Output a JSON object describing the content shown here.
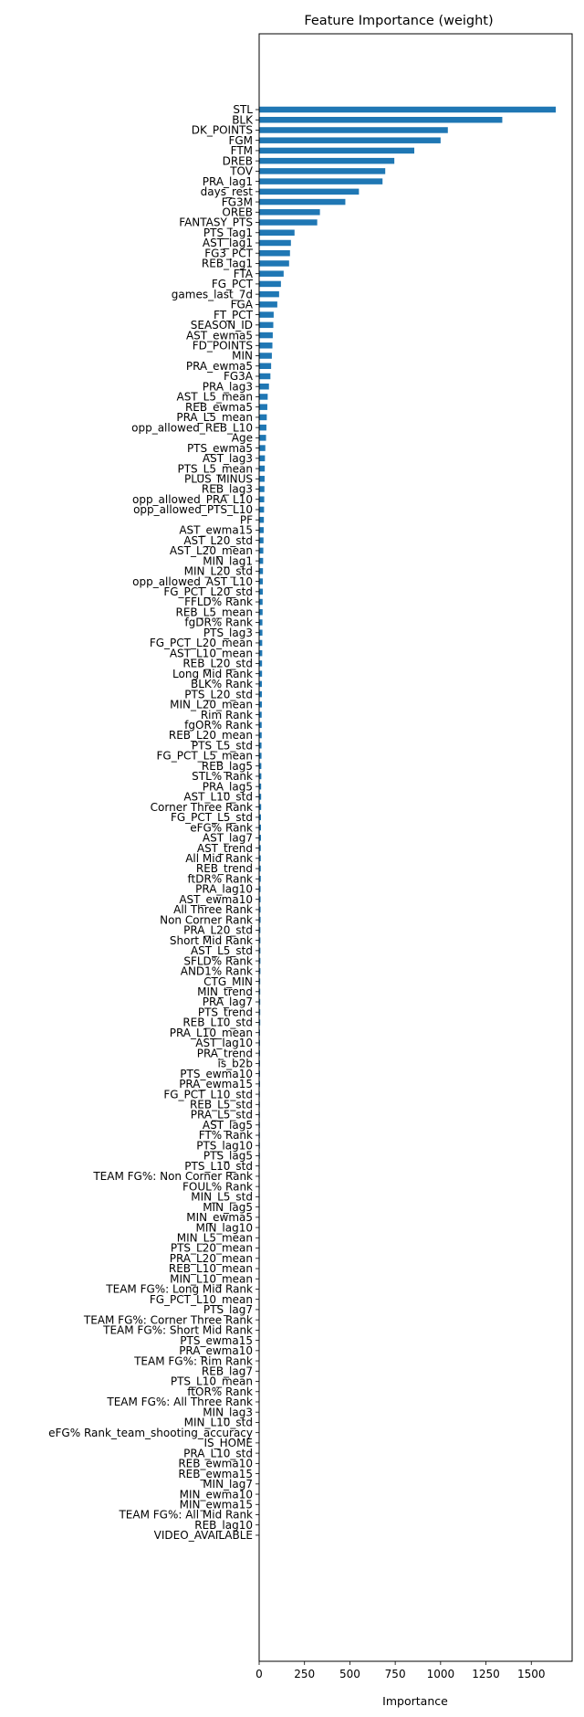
{
  "chart_data": {
    "type": "bar",
    "orientation": "horizontal",
    "title": "Feature Importance (weight)",
    "xlabel": "Importance",
    "ylabel": "",
    "xlim": [
      0,
      1725
    ],
    "xticks": [
      0,
      250,
      500,
      750,
      1000,
      1250,
      1500
    ],
    "grid": false,
    "bar_color": "#1f77b4",
    "categories": [
      "STL",
      "BLK",
      "DK_POINTS",
      "FGM",
      "FTM",
      "DREB",
      "TOV",
      "PRA_lag1",
      "days_rest",
      "FG3M",
      "OREB",
      "FANTASY_PTS",
      "PTS_lag1",
      "AST_lag1",
      "FG3_PCT",
      "REB_lag1",
      "FTA",
      "FG_PCT",
      "games_last_7d",
      "FGA",
      "FT_PCT",
      "SEASON_ID",
      "AST_ewma5",
      "FD_POINTS",
      "MIN",
      "PRA_ewma5",
      "FG3A",
      "PRA_lag3",
      "AST_L5_mean",
      "REB_ewma5",
      "PRA_L5_mean",
      "opp_allowed_REB_L10",
      "Age",
      "PTS_ewma5",
      "AST_lag3",
      "PTS_L5_mean",
      "PLUS_MINUS",
      "REB_lag3",
      "opp_allowed_PRA_L10",
      "opp_allowed_PTS_L10",
      "PF",
      "AST_ewma15",
      "AST_L20_std",
      "AST_L20_mean",
      "MIN_lag1",
      "MIN_L20_std",
      "opp_allowed_AST_L10",
      "FG_PCT_L20_std",
      "FFLD% Rank",
      "REB_L5_mean",
      "fgDR% Rank",
      "PTS_lag3",
      "FG_PCT_L20_mean",
      "AST_L10_mean",
      "REB_L20_std",
      "Long Mid Rank",
      "BLK% Rank",
      "PTS_L20_std",
      "MIN_L20_mean",
      "Rim Rank",
      "fgOR% Rank",
      "REB_L20_mean",
      "PTS_L5_std",
      "FG_PCT_L5_mean",
      "REB_lag5",
      "STL% Rank",
      "PRA_lag5",
      "AST_L10_std",
      "Corner Three Rank",
      "FG_PCT_L5_std",
      "eFG% Rank",
      "AST_lag7",
      "AST_trend",
      "All Mid Rank",
      "REB_trend",
      "ftDR% Rank",
      "PRA_lag10",
      "AST_ewma10",
      "All Three Rank",
      "Non Corner Rank",
      "PRA_L20_std",
      "Short Mid Rank",
      "AST_L5_std",
      "SFLD% Rank",
      "AND1% Rank",
      "CTG_MIN",
      "MIN_trend",
      "PRA_lag7",
      "PTS_trend",
      "REB_L10_std",
      "PRA_L10_mean",
      "AST_lag10",
      "PRA_trend",
      "is_b2b",
      "PTS_ewma10",
      "PRA_ewma15",
      "FG_PCT_L10_std",
      "REB_L5_std",
      "PRA_L5_std",
      "AST_lag5",
      "FT% Rank",
      "PTS_lag10",
      "PTS_lag5",
      "PTS_L10_std",
      "TEAM FG%: Non Corner Rank",
      "FOUL% Rank",
      "MIN_L5_std",
      "MIN_lag5",
      "MIN_ewma5",
      "MIN_lag10",
      "MIN_L5_mean",
      "PTS_L20_mean",
      "PRA_L20_mean",
      "REB_L10_mean",
      "MIN_L10_mean",
      "TEAM FG%: Long Mid Rank",
      "FG_PCT_L10_mean",
      "PTS_lag7",
      "TEAM FG%: Corner Three Rank",
      "TEAM FG%: Short Mid Rank",
      "PTS_ewma15",
      "PRA_ewma10",
      "TEAM FG%: Rim Rank",
      "REB_lag7",
      "PTS_L10_mean",
      "ftOR% Rank",
      "TEAM FG%: All Three Rank",
      "MIN_lag3",
      "MIN_L10_std",
      "eFG% Rank_team_shooting_accuracy",
      "IS_HOME",
      "PRA_L10_std",
      "REB_ewma10",
      "REB_ewma15",
      "MIN_lag7",
      "MIN_ewma10",
      "MIN_ewma15",
      "TEAM FG%: All Mid Rank",
      "REB_lag10",
      "VIDEO_AVAILABLE"
    ],
    "values": [
      1635,
      1340,
      1040,
      1000,
      855,
      745,
      695,
      680,
      550,
      475,
      335,
      320,
      195,
      175,
      170,
      165,
      135,
      120,
      110,
      100,
      80,
      78,
      75,
      73,
      70,
      66,
      62,
      54,
      47,
      45,
      42,
      40,
      38,
      34,
      32,
      31,
      30,
      29,
      28,
      27,
      26,
      25,
      24,
      23,
      22,
      21,
      20,
      20,
      19,
      19,
      18,
      18,
      17,
      17,
      16,
      16,
      15,
      15,
      15,
      14,
      14,
      14,
      13,
      13,
      12,
      12,
      11,
      11,
      11,
      10,
      10,
      10,
      9,
      9,
      9,
      9,
      8,
      8,
      8,
      8,
      7,
      7,
      7,
      7,
      7,
      6,
      6,
      6,
      6,
      6,
      5,
      5,
      5,
      5,
      5,
      5,
      4,
      4,
      4,
      4,
      4,
      4,
      4,
      3,
      3,
      3,
      3,
      3,
      3,
      3,
      3,
      3,
      3,
      2,
      2,
      2,
      2,
      2,
      2,
      2,
      2,
      2,
      2,
      2,
      2,
      2,
      1,
      1,
      1,
      1,
      1,
      1,
      1,
      1,
      1,
      1,
      1,
      1,
      1,
      0
    ]
  }
}
